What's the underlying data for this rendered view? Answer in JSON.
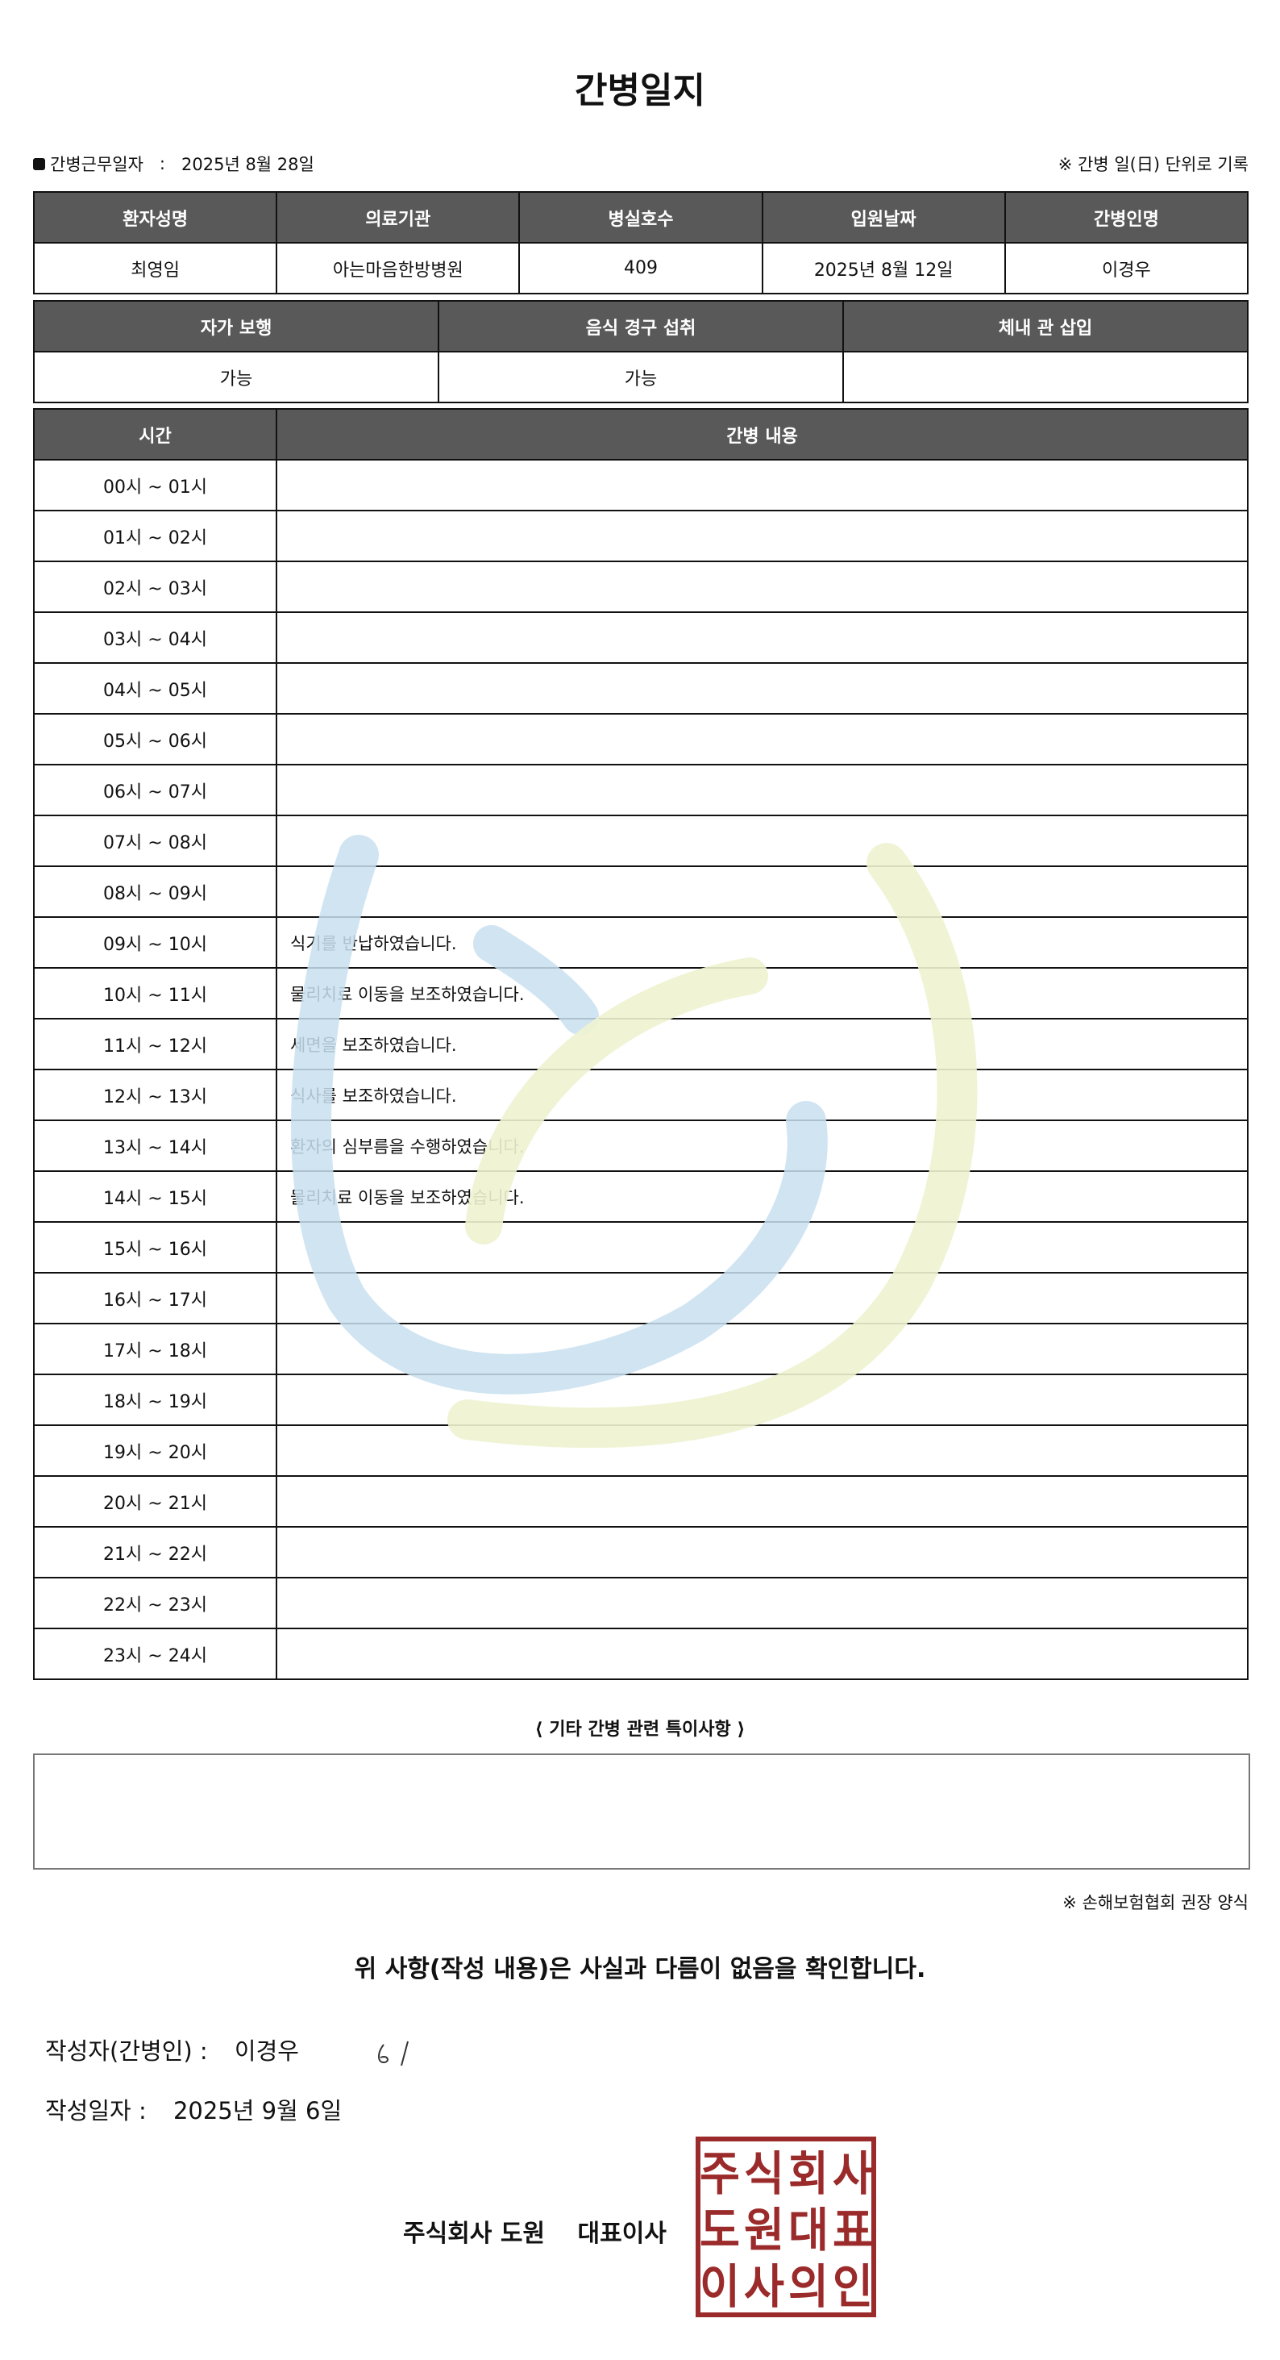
{
  "title": "간병일지",
  "work_date": {
    "label": "간병근무일자",
    "separator": ":",
    "value": "2025년 8월 28일"
  },
  "unit_note": "※ 간병 일(日) 단위로 기록",
  "info_table": {
    "headers": [
      "환자성명",
      "의료기관",
      "병실호수",
      "입원날짜",
      "간병인명"
    ],
    "values": [
      "최영임",
      "아는마음한방병원",
      "409",
      "2025년 8월 12일",
      "이경우"
    ]
  },
  "status_table": {
    "headers": [
      "자가 보행",
      "음식 경구 섭취",
      "체내 관 삽입"
    ],
    "values": [
      "가능",
      "가능",
      ""
    ]
  },
  "log_table": {
    "headers": [
      "시간",
      "간병 내용"
    ],
    "rows": [
      {
        "time": "00시 ~ 01시",
        "content": ""
      },
      {
        "time": "01시 ~ 02시",
        "content": ""
      },
      {
        "time": "02시 ~ 03시",
        "content": ""
      },
      {
        "time": "03시 ~ 04시",
        "content": ""
      },
      {
        "time": "04시 ~ 05시",
        "content": ""
      },
      {
        "time": "05시 ~ 06시",
        "content": ""
      },
      {
        "time": "06시 ~ 07시",
        "content": ""
      },
      {
        "time": "07시 ~ 08시",
        "content": ""
      },
      {
        "time": "08시 ~ 09시",
        "content": ""
      },
      {
        "time": "09시 ~ 10시",
        "content": "식기를 반납하였습니다."
      },
      {
        "time": "10시 ~ 11시",
        "content": "물리치료 이동을 보조하였습니다."
      },
      {
        "time": "11시 ~ 12시",
        "content": "세면을 보조하였습니다."
      },
      {
        "time": "12시 ~ 13시",
        "content": "식사를 보조하였습니다."
      },
      {
        "time": "13시 ~ 14시",
        "content": "환자의 심부름을 수행하였습니다."
      },
      {
        "time": "14시 ~ 15시",
        "content": "물리치료 이동을 보조하였습니다."
      },
      {
        "time": "15시 ~ 16시",
        "content": ""
      },
      {
        "time": "16시 ~ 17시",
        "content": ""
      },
      {
        "time": "17시 ~ 18시",
        "content": ""
      },
      {
        "time": "18시 ~ 19시",
        "content": ""
      },
      {
        "time": "19시 ~ 20시",
        "content": ""
      },
      {
        "time": "20시 ~ 21시",
        "content": ""
      },
      {
        "time": "21시 ~ 22시",
        "content": ""
      },
      {
        "time": "22시 ~ 23시",
        "content": ""
      },
      {
        "time": "23시 ~ 24시",
        "content": ""
      }
    ]
  },
  "notes": {
    "title": "⟨ 기타 간병 관련 특이사항 ⟩",
    "content": ""
  },
  "association_note": "※ 손해보험협회 권장 양식",
  "confirmation": "위 사항(작성 내용)은 사실과 다름이 없음을 확인합니다.",
  "writer": {
    "label": "작성자(간병인) :",
    "name": "이경우",
    "signature": "ㅇ/"
  },
  "written_date": {
    "label": "작성일자 :",
    "value": "2025년 9월 6일"
  },
  "company": {
    "name": "주식회사 도원",
    "title": "대표이사",
    "seal_text": "주식회사도원대표이사의인"
  },
  "colors": {
    "header_bg": "#595959",
    "seal_red": "#9b2a2a",
    "watermark_blue": "#c8dff0",
    "watermark_green": "#eef3d0"
  }
}
